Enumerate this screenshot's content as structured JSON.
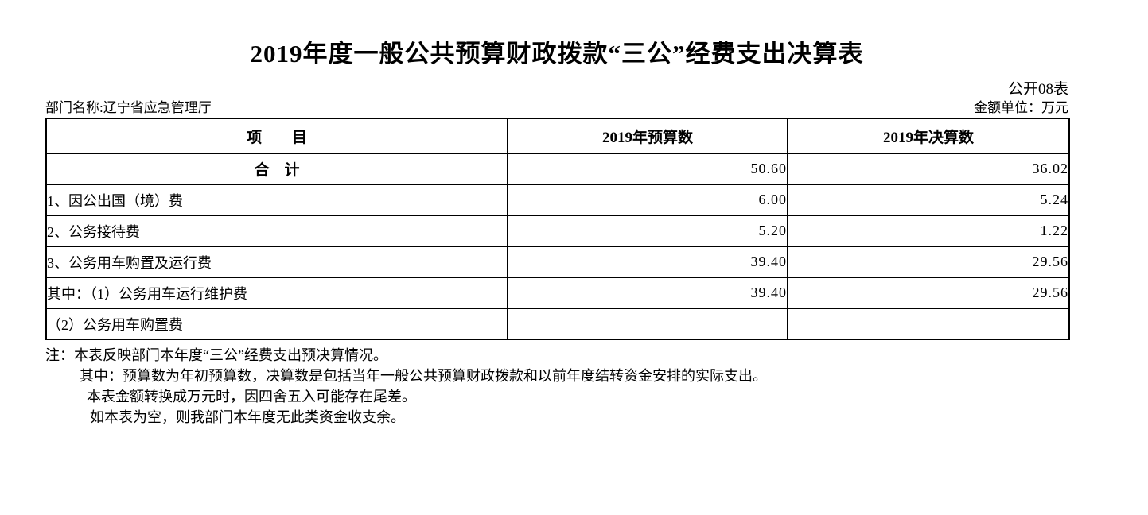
{
  "page": {
    "title": "2019年度一般公共预算财政拨款“三公”经费支出决算表",
    "form_code": "公开08表",
    "department": "部门名称:辽宁省应急管理厅",
    "unit": "金额单位：万元"
  },
  "table": {
    "headers": {
      "item": "项　　目",
      "budget": "2019年预算数",
      "final": "2019年决算数"
    },
    "rows": [
      {
        "label": "合　计",
        "budget": "50.60",
        "final": "36.02"
      },
      {
        "label": "1、因公出国（境）费",
        "budget": "6.00",
        "final": "5.24"
      },
      {
        "label": "2、公务接待费",
        "budget": "5.20",
        "final": "1.22"
      },
      {
        "label": "3、公务用车购置及运行费",
        "budget": "39.40",
        "final": "29.56"
      },
      {
        "label": "其中：（1）公务用车运行维护费",
        "budget": "39.40",
        "final": "29.56"
      },
      {
        "label": "（2）公务用车购置费",
        "budget": "",
        "final": ""
      }
    ]
  },
  "notes": [
    "注：本表反映部门本年度“三公”经费支出预决算情况。",
    "其中：预算数为年初预算数，决算数是包括当年一般公共预算财政拨款和以前年度结转资金安排的实际支出。",
    "本表金额转换成万元时，因四舍五入可能存在尾差。",
    "如本表为空，则我部门本年度无此类资金收支余。"
  ]
}
